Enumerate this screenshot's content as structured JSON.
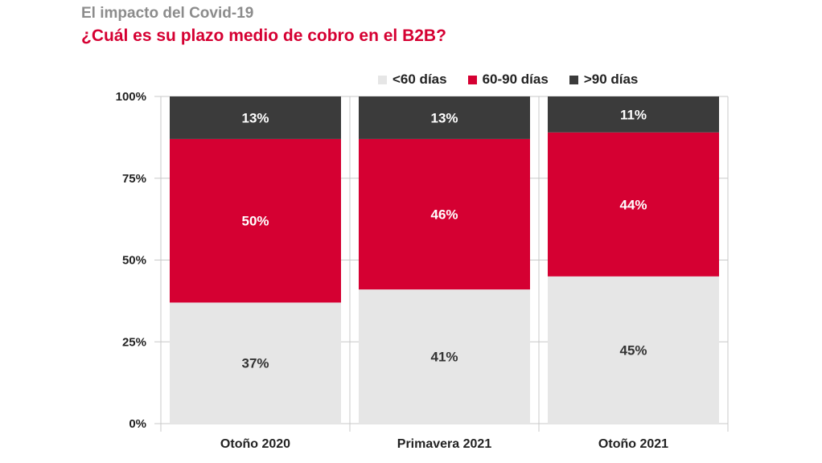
{
  "header": {
    "kicker": "El impacto del Covid-19",
    "title": "¿Cuál es su plazo medio de cobro en el B2B?"
  },
  "colors": {
    "lt60": "#e6e6e6",
    "r60_90": "#d50032",
    "gt90": "#3b3b3b",
    "title": "#d50032",
    "kicker": "#8c8c8c",
    "grid": "#c8c8c8"
  },
  "legend": [
    {
      "label": "<60 días",
      "color": "#e6e6e6"
    },
    {
      "label": "60-90 días",
      "color": "#d50032"
    },
    {
      "label": ">90 días",
      "color": "#3b3b3b"
    }
  ],
  "chart_data": {
    "type": "bar",
    "stacked": true,
    "title": "¿Cuál es su plazo medio de cobro en el B2B?",
    "categories": [
      "Otoño 2020",
      "Primavera 2021",
      "Otoño 2021"
    ],
    "series": [
      {
        "name": "<60 días",
        "values": [
          37,
          41,
          45
        ],
        "labels": [
          "37%",
          "41%",
          "45%"
        ],
        "color": "#e6e6e6"
      },
      {
        "name": "60-90 días",
        "values": [
          50,
          46,
          44
        ],
        "labels": [
          "50%",
          "46%",
          "44%"
        ],
        "color": "#d50032"
      },
      {
        "name": ">90 días",
        "values": [
          13,
          13,
          11
        ],
        "labels": [
          "13%",
          "13%",
          "11%"
        ],
        "color": "#3b3b3b"
      }
    ],
    "ylim": [
      0,
      100
    ],
    "yticks": [
      0,
      25,
      50,
      75,
      100
    ],
    "ytick_labels": [
      "0%",
      "25%",
      "50%",
      "75%",
      "100%"
    ],
    "grid": true,
    "legend_position": "top-right"
  }
}
